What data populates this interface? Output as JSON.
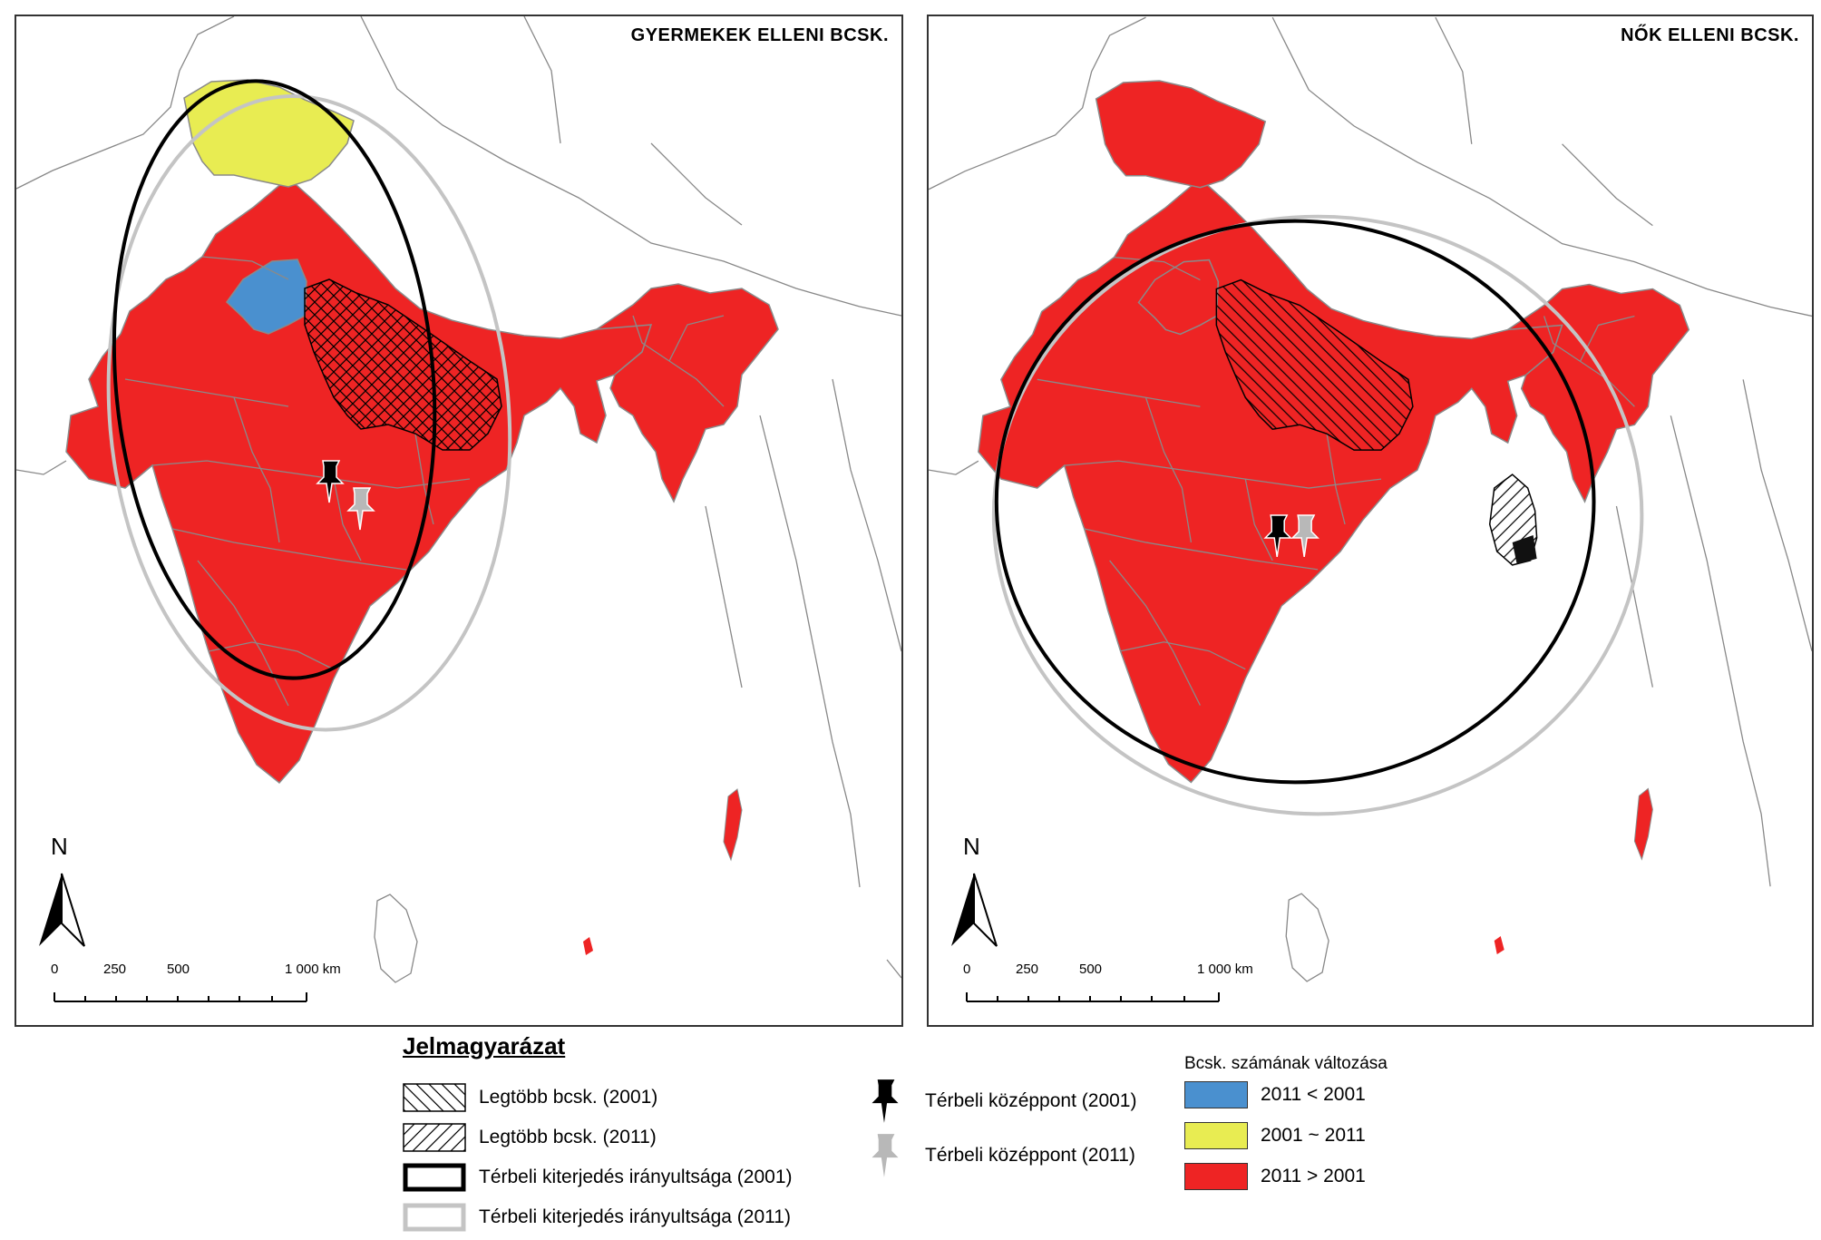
{
  "panels": [
    {
      "title": "GYERMEKEK ELLENI BCSK.",
      "north_label": "N",
      "scale": {
        "ticks": [
          "0",
          "250",
          "500",
          "1 000 km"
        ]
      }
    },
    {
      "title": "NŐK ELLENI BCSK.",
      "north_label": "N",
      "scale": {
        "ticks": [
          "0",
          "250",
          "500",
          "1 000 km"
        ]
      }
    }
  ],
  "legend": {
    "title": "Jelmagyarázat",
    "hatch_2001": "Legtöbb bcsk. (2001)",
    "hatch_2011": "Legtöbb bcsk. (2011)",
    "ellipse_2001": "Térbeli kiterjedés irányultsága (2001)",
    "ellipse_2011": "Térbeli kiterjedés irányultsága (2011)",
    "center_2001": "Térbeli középpont (2001)",
    "center_2011": "Térbeli középpont (2011)",
    "change_title": "Bcsk. számának változása",
    "change_decrease": "2011 < 2001",
    "change_stable": "2001 ~ 2011",
    "change_increase": "2011 > 2001"
  },
  "colors": {
    "decrease": "#4a90cf",
    "stable": "#e8ec52",
    "increase": "#ee2424",
    "ellipse_2001": "#000000",
    "ellipse_2011": "#c4c4c4",
    "pin_2001": "#000000",
    "pin_2011": "#b8b8b8"
  }
}
